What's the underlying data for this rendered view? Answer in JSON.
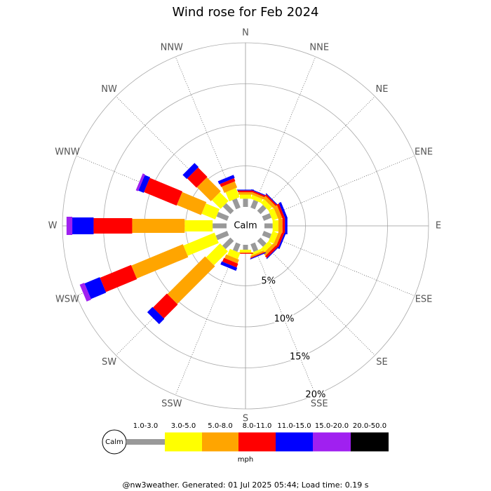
{
  "chart_data": {
    "type": "windrose",
    "title": "Wind rose for Feb 2024",
    "categories": [
      "N",
      "NNE",
      "NE",
      "ENE",
      "E",
      "ESE",
      "SE",
      "SSE",
      "S",
      "SSW",
      "SW",
      "WSW",
      "W",
      "WNW",
      "NW",
      "NNW"
    ],
    "series": [
      {
        "name": "1.0-3.0",
        "color": "#999999",
        "values": [
          1.0,
          1.0,
          1.0,
          1.0,
          1.0,
          1.0,
          1.0,
          1.0,
          0.6,
          1.0,
          1.4,
          1.5,
          1.7,
          1.4,
          1.3,
          1.2
        ]
      },
      {
        "name": "3.0-5.0",
        "color": "#ffff00",
        "values": [
          0.5,
          0.5,
          0.6,
          0.7,
          0.7,
          0.7,
          0.6,
          0.3,
          0.3,
          0.8,
          2.4,
          4.1,
          3.4,
          1.8,
          1.5,
          1.2
        ]
      },
      {
        "name": "5.0-8.0",
        "color": "#ffa500",
        "values": [
          0.3,
          0.3,
          0.4,
          0.5,
          0.5,
          0.4,
          0.4,
          0.2,
          0.1,
          0.5,
          6.5,
          6.8,
          6.4,
          3.2,
          2.4,
          0.8
        ]
      },
      {
        "name": "8.0-11.0",
        "color": "#ff0000",
        "values": [
          0.2,
          0.2,
          0.2,
          0.3,
          0.3,
          0.3,
          0.3,
          0.1,
          0.1,
          0.5,
          2.4,
          4.1,
          4.7,
          4.3,
          1.6,
          0.4
        ]
      },
      {
        "name": "11.0-15.0",
        "color": "#0000ff",
        "values": [
          0.1,
          0.1,
          0.1,
          0.3,
          0.3,
          0.2,
          0.1,
          0.1,
          0.0,
          0.4,
          0.9,
          2.0,
          2.6,
          0.7,
          0.7,
          0.4
        ]
      },
      {
        "name": "15.0-20.0",
        "color": "#a020f0",
        "values": [
          0,
          0,
          0,
          0,
          0,
          0,
          0,
          0,
          0,
          0,
          0,
          0.6,
          0.7,
          0.3,
          0,
          0
        ]
      },
      {
        "name": "20.0-50.0",
        "color": "#000000",
        "values": [
          0,
          0,
          0,
          0,
          0,
          0,
          0,
          0,
          0,
          0,
          0,
          0,
          0,
          0,
          0,
          0
        ]
      }
    ],
    "rlim": [
      0,
      20
    ],
    "rticks": [
      {
        "value": 5,
        "label": "5%"
      },
      {
        "value": 10,
        "label": "10%"
      },
      {
        "value": 15,
        "label": "15%"
      },
      {
        "value": 20,
        "label": "20%"
      }
    ],
    "calm_label": "Calm",
    "unit_label": "mph",
    "footer": "@nw3weather. Generated: 01 Jul 2025 05:44; Load time: 0.19 s"
  }
}
